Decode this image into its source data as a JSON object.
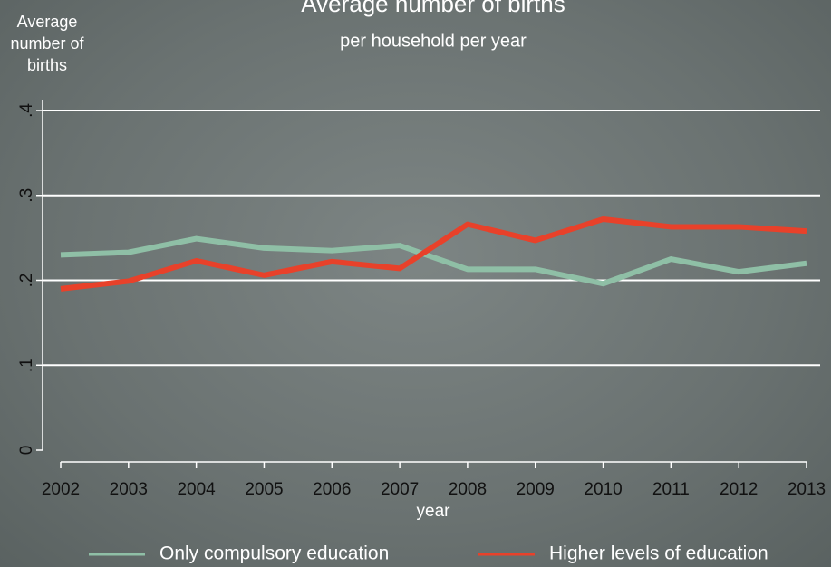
{
  "chart_data": {
    "type": "line",
    "title": "Average number of births",
    "subtitle": "per household per year",
    "y_label": "Average number of births",
    "x_label": "year",
    "x": [
      2002,
      2003,
      2004,
      2005,
      2006,
      2007,
      2008,
      2009,
      2010,
      2011,
      2012,
      2013
    ],
    "xlim": [
      2002,
      2013
    ],
    "xticks": [
      2002,
      2003,
      2004,
      2005,
      2006,
      2007,
      2008,
      2009,
      2010,
      2011,
      2012,
      2013
    ],
    "ylim": [
      0,
      0.4
    ],
    "yticks": [
      0,
      {
        "value": 0.1,
        "label": ".1"
      },
      {
        "value": 0.2,
        "label": ".2"
      },
      {
        "value": 0.3,
        "label": ".3"
      },
      {
        "value": 0.4,
        "label": ".4"
      }
    ],
    "grid": true,
    "legend": "bottom",
    "series": [
      {
        "name": "Only compulsory education",
        "color": "#8fbfa6",
        "values": [
          0.23,
          0.233,
          0.249,
          0.238,
          0.235,
          0.241,
          0.213,
          0.213,
          0.196,
          0.225,
          0.21,
          0.22
        ]
      },
      {
        "name": "Higher levels of education",
        "color": "#e8412a",
        "values": [
          0.19,
          0.199,
          0.223,
          0.206,
          0.222,
          0.214,
          0.266,
          0.247,
          0.272,
          0.263,
          0.263,
          0.258
        ]
      }
    ]
  }
}
